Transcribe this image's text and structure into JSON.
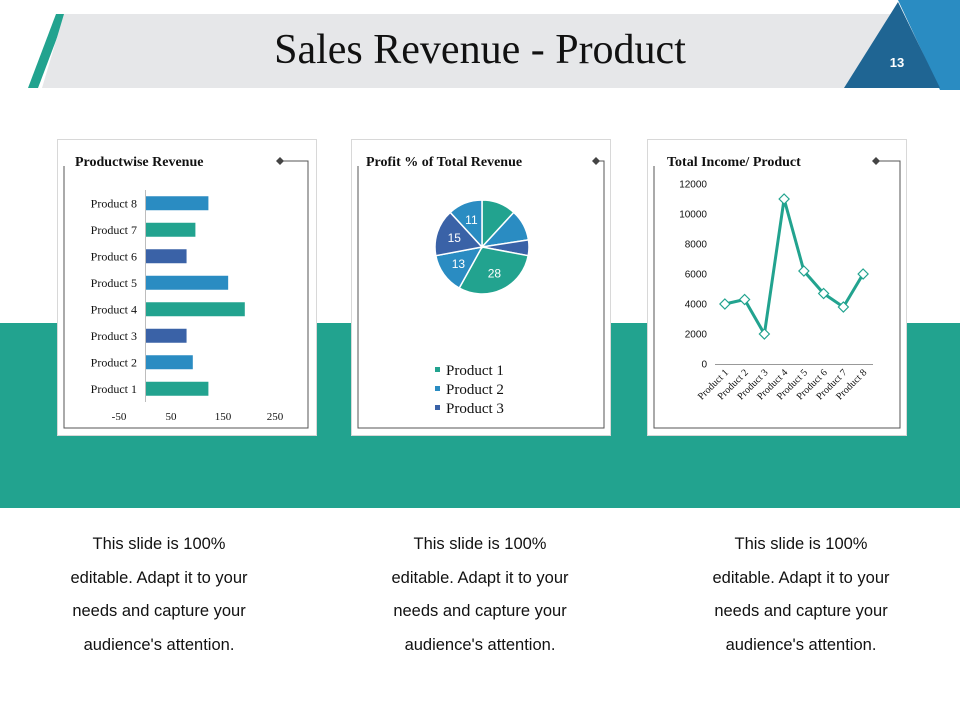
{
  "slide": {
    "title": "Sales Revenue - Product",
    "page_number": "13",
    "colors": {
      "accent": "#22a38f",
      "blue": "#2a8cc2",
      "dark_blue": "#1f6593",
      "navy": "#3a62a7",
      "title_bg": "#e6e7e9"
    }
  },
  "captions": [
    {
      "lines": [
        "This slide is 100%",
        "editable. Adapt it to your",
        "needs and capture your",
        "audience's attention."
      ]
    },
    {
      "lines": [
        "This slide is 100%",
        "editable. Adapt it to your",
        "needs and capture your",
        "audience's attention."
      ]
    },
    {
      "lines": [
        "This slide is 100%",
        "editable. Adapt it to your",
        "needs and capture your",
        "audience's attention."
      ]
    }
  ],
  "chart_data": [
    {
      "type": "bar",
      "orientation": "horizontal",
      "title": "Productwise Revenue",
      "categories": [
        "Product 1",
        "Product 2",
        "Product 3",
        "Product 4",
        "Product 5",
        "Product 6",
        "Product 7",
        "Product 8"
      ],
      "values": [
        120,
        90,
        78,
        190,
        158,
        78,
        95,
        120
      ],
      "bar_colors": [
        "#22a38f",
        "#2a8cc2",
        "#3a62a7",
        "#22a38f",
        "#2a8cc2",
        "#3a62a7",
        "#22a38f",
        "#2a8cc2"
      ],
      "xlim": [
        -50,
        250
      ],
      "xticks": [
        "-50",
        "50",
        "150",
        "250"
      ],
      "xtick_values": [
        -50,
        50,
        150,
        250
      ],
      "grid": false
    },
    {
      "type": "pie",
      "title": "Profit % of Total Revenue",
      "slices": [
        {
          "label": "Product 1",
          "value": 11,
          "color": "#22a38f",
          "show_label": false
        },
        {
          "label": "Product 2",
          "value": 10,
          "color": "#2a8cc2",
          "show_label": false
        },
        {
          "label": "Product 3",
          "value": 5,
          "color": "#3a62a7",
          "show_label": false
        },
        {
          "label": "Product 4",
          "value": 28,
          "color": "#22a38f",
          "show_label": true
        },
        {
          "label": "Product 5",
          "value": 13,
          "color": "#2a8cc2",
          "show_label": true
        },
        {
          "label": "Product 6",
          "value": 15,
          "color": "#3a62a7",
          "show_label": true
        },
        {
          "label": "Product 7",
          "value": 11,
          "color": "#2a8cc2",
          "show_label": true
        }
      ],
      "legend": [
        {
          "label": "Product 1",
          "color": "#22a38f"
        },
        {
          "label": "Product 2",
          "color": "#2a8cc2"
        },
        {
          "label": "Product 3",
          "color": "#3a62a7"
        }
      ],
      "legend_position": "bottom"
    },
    {
      "type": "line",
      "title": "Total Income/ Product",
      "categories": [
        "Product 1",
        "Product 2",
        "Product 3",
        "Product 4",
        "Product 5",
        "Product 6",
        "Product 7",
        "Product 8"
      ],
      "values": [
        4000,
        4300,
        2000,
        11000,
        6200,
        4700,
        3800,
        6000
      ],
      "color": "#22a38f",
      "ylim": [
        0,
        12000
      ],
      "yticks": [
        "0",
        "2000",
        "4000",
        "6000",
        "8000",
        "10000",
        "12000"
      ],
      "ytick_values": [
        0,
        2000,
        4000,
        6000,
        8000,
        10000,
        12000
      ],
      "grid": false
    }
  ]
}
